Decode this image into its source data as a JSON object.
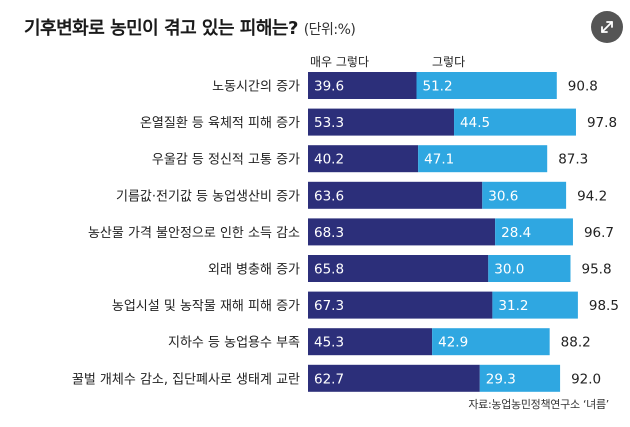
{
  "title": "기후변화로 농민이 겪고 있는 피해는?",
  "unit": "(단위:%)",
  "expand_icon": "expand-icon",
  "source": "자료:농업농민정책연구소 ‘녀름’",
  "colors": {
    "very_much": "#2c2f7a",
    "somewhat": "#2fa7e1"
  },
  "chart_data": {
    "type": "bar",
    "orientation": "horizontal",
    "stacked": true,
    "title": "기후변화로 농민이 겪고 있는 피해는?",
    "unit": "(단위:%)",
    "legend_position": "top",
    "categories": [
      "노동시간의 증가",
      "온열질환 등 육체적 피해 증가",
      "우울감 등 정신적 고통 증가",
      "기름값·전기값 등 농업생산비 증가",
      "농산물 가격 불안정으로 인한 소득 감소",
      "외래 병충해 증가",
      "농업시설 및 농작물 재해 피해 증가",
      "지하수 등 농업용수 부족",
      "꿀벌 개체수 감소, 집단폐사로 생태계 교란"
    ],
    "series": [
      {
        "name": "매우 그렇다",
        "color": "#2c2f7a",
        "values": [
          39.6,
          53.3,
          40.2,
          63.6,
          68.3,
          65.8,
          67.3,
          45.3,
          62.7
        ]
      },
      {
        "name": "그렇다",
        "color": "#2fa7e1",
        "values": [
          51.2,
          44.5,
          47.1,
          30.6,
          28.4,
          30.0,
          31.2,
          42.9,
          29.3
        ]
      }
    ],
    "totals": [
      90.8,
      97.8,
      87.3,
      94.2,
      96.7,
      95.8,
      98.5,
      88.2,
      92.0
    ],
    "value_labels": {
      "very_much": [
        "39.6",
        "53.3",
        "40.2",
        "63.6",
        "68.3",
        "65.8",
        "67.3",
        "45.3",
        "62.7"
      ],
      "somewhat": [
        "51.2",
        "44.5",
        "47.1",
        "30.6",
        "28.4",
        "30.0",
        "31.2",
        "42.9",
        "29.3"
      ],
      "totals": [
        "90.8",
        "97.8",
        "87.3",
        "94.2",
        "96.7",
        "95.8",
        "98.5",
        "88.2",
        "92.0"
      ]
    },
    "xlim": [
      0,
      100
    ]
  }
}
